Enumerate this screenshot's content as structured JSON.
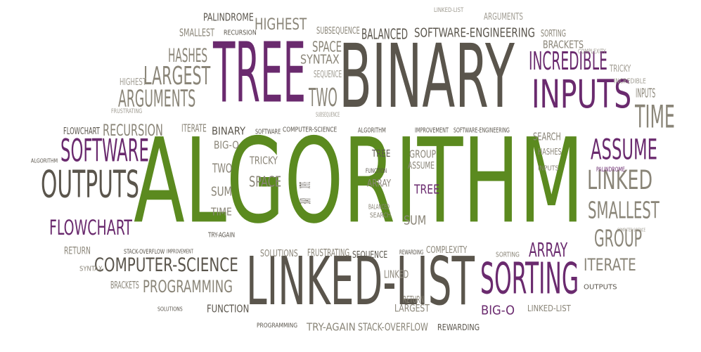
{
  "colors": {
    "green": "#5b8a1f",
    "purple": "#6a2a6e",
    "dark": "#5a554c",
    "mid": "#8a8578",
    "light": "#a09c92"
  },
  "words": [
    {
      "id": "algorithm-main",
      "text": "ALGORITHM",
      "color": "green"
    },
    {
      "id": "binary-big",
      "text": "BINARY",
      "color": "dark"
    },
    {
      "id": "tree-big",
      "text": "TREE",
      "color": "purple"
    },
    {
      "id": "linked-list-big",
      "text": "LINKED-LIST",
      "color": "dark"
    },
    {
      "id": "inputs-big",
      "text": "INPUTS",
      "color": "purple"
    },
    {
      "id": "outputs-big",
      "text": "OUTPUTS",
      "color": "dark"
    },
    {
      "id": "sorting-big",
      "text": "SORTING",
      "color": "purple"
    },
    {
      "id": "software-big",
      "text": "SOFTWARE",
      "color": "purple"
    },
    {
      "id": "incredible",
      "text": "INCREDIBLE",
      "color": "purple"
    },
    {
      "id": "assume-big",
      "text": "ASSUME",
      "color": "purple"
    },
    {
      "id": "linked",
      "text": "LINKED",
      "color": "mid"
    },
    {
      "id": "smallest-right",
      "text": "SMALLEST",
      "color": "mid"
    },
    {
      "id": "group-right",
      "text": "GROUP",
      "color": "mid"
    },
    {
      "id": "array-right",
      "text": "ARRAY",
      "color": "purple"
    },
    {
      "id": "iterate-right",
      "text": "ITERATE",
      "color": "mid"
    },
    {
      "id": "time-right",
      "text": "TIME",
      "color": "mid"
    },
    {
      "id": "largest-left",
      "text": "LARGEST",
      "color": "mid"
    },
    {
      "id": "arguments-left",
      "text": "ARGUMENTS",
      "color": "mid"
    },
    {
      "id": "hashes-left",
      "text": "HASHES",
      "color": "mid"
    },
    {
      "id": "flowchart-left",
      "text": "FLOWCHART",
      "color": "purple"
    },
    {
      "id": "computer-science",
      "text": "COMPUTER-SCIENCE",
      "color": "dark"
    },
    {
      "id": "programming",
      "text": "PROGRAMMING",
      "color": "mid"
    },
    {
      "id": "recursion",
      "text": "RECURSION",
      "color": "mid"
    },
    {
      "id": "highest-top",
      "text": "HIGHEST",
      "color": "mid"
    },
    {
      "id": "palindrome-top",
      "text": "PALINDROME",
      "color": "dark"
    },
    {
      "id": "software-engineering",
      "text": "SOFTWARE-ENGINEERING",
      "color": "dark"
    },
    {
      "id": "balanced",
      "text": "BALANCED",
      "color": "dark"
    },
    {
      "id": "two-mid",
      "text": "TWO",
      "color": "mid"
    },
    {
      "id": "syntax-top",
      "text": "SYNTAX",
      "color": "mid"
    },
    {
      "id": "space-top",
      "text": "SPACE",
      "color": "mid"
    },
    {
      "id": "subsequence",
      "text": "SUBSEQUENCE",
      "color": "mid"
    },
    {
      "id": "sequence-top",
      "text": "SEQUENCE",
      "color": "light"
    },
    {
      "id": "subsequence-small",
      "text": "SUBSEQUENCE",
      "color": "light"
    },
    {
      "id": "arguments-top",
      "text": "ARGUMENTS",
      "color": "light"
    },
    {
      "id": "linked-list-top",
      "text": "LINKED-LIST",
      "color": "light"
    },
    {
      "id": "sorting-top",
      "text": "SORTING",
      "color": "mid"
    },
    {
      "id": "brackets-top",
      "text": "BRACKETS",
      "color": "mid"
    },
    {
      "id": "complexity-top",
      "text": "COMPLEXITY",
      "color": "light"
    },
    {
      "id": "tricky-right",
      "text": "TRICKY",
      "color": "light"
    },
    {
      "id": "incredible-small",
      "text": "INCREDIBLE",
      "color": "light"
    },
    {
      "id": "inputs-small",
      "text": "INPUTS",
      "color": "mid"
    },
    {
      "id": "smallest-top",
      "text": "SMALLEST",
      "color": "mid"
    },
    {
      "id": "recursion-top",
      "text": "RECURSION",
      "color": "dark"
    },
    {
      "id": "highest-left",
      "text": "HIGHEST",
      "color": "light"
    },
    {
      "id": "frustrating-left",
      "text": "FRUSTRATING",
      "color": "light"
    },
    {
      "id": "flowchart-small",
      "text": "FLOWCHART",
      "color": "dark"
    },
    {
      "id": "iterate-mid",
      "text": "ITERATE",
      "color": "mid"
    },
    {
      "id": "binary-mid",
      "text": "BINARY",
      "color": "dark"
    },
    {
      "id": "big-o-mid",
      "text": "BIG-O",
      "color": "mid"
    },
    {
      "id": "software-small",
      "text": "SOFTWARE",
      "color": "dark"
    },
    {
      "id": "computer-science-small",
      "text": "COMPUTER-SCIENCE",
      "color": "dark"
    },
    {
      "id": "algorithm-small",
      "text": "ALGORITHM",
      "color": "dark"
    },
    {
      "id": "improvement",
      "text": "IMPROVEMENT",
      "color": "dark"
    },
    {
      "id": "software-engineering-small",
      "text": "SOFTWARE-ENGINEERING",
      "color": "dark"
    },
    {
      "id": "search-right",
      "text": "SEARCH",
      "color": "mid"
    },
    {
      "id": "hashes-right",
      "text": "HASHES",
      "color": "mid"
    },
    {
      "id": "inputs-right-small",
      "text": "INPUTS",
      "color": "mid"
    },
    {
      "id": "palindrome-right",
      "text": "PALINDROME",
      "color": "purple"
    },
    {
      "id": "computer-science-right",
      "text": "COMPUTER-SCIENCE",
      "color": "light"
    },
    {
      "id": "tricky-mid",
      "text": "TRICKY",
      "color": "mid"
    },
    {
      "id": "space-mid",
      "text": "SPACE",
      "color": "mid"
    },
    {
      "id": "two-lower",
      "text": "TWO",
      "color": "mid"
    },
    {
      "id": "sum-lower",
      "text": "SUM",
      "color": "mid"
    },
    {
      "id": "time-lower",
      "text": "TIME",
      "color": "mid"
    },
    {
      "id": "outputs-small",
      "text": "OUTPUTS",
      "color": "dark"
    },
    {
      "id": "binary-small",
      "text": "BINARY",
      "color": "dark"
    },
    {
      "id": "tree-mid",
      "text": "TREE",
      "color": "dark"
    },
    {
      "id": "group-mid",
      "text": "GROUP",
      "color": "mid"
    },
    {
      "id": "assume-mid",
      "text": "ASSUME",
      "color": "mid"
    },
    {
      "id": "function-mid",
      "text": "FUNCTION",
      "color": "dark"
    },
    {
      "id": "array-mid",
      "text": "ARRAY",
      "color": "mid"
    },
    {
      "id": "tree-purple",
      "text": "TREE",
      "color": "purple"
    },
    {
      "id": "sum-mid",
      "text": "SUM",
      "color": "mid"
    },
    {
      "id": "balanced-small",
      "text": "BALANCED",
      "color": "mid"
    },
    {
      "id": "search-small",
      "text": "SEARCH",
      "color": "mid"
    },
    {
      "id": "algorithm-tiny",
      "text": "ALGORITHM",
      "color": "dark"
    },
    {
      "id": "try-again-mid",
      "text": "TRY-AGAIN",
      "color": "dark"
    },
    {
      "id": "solutions",
      "text": "SOLUTIONS",
      "color": "mid"
    },
    {
      "id": "frustrating-mid",
      "text": "FRUSTRATING",
      "color": "mid"
    },
    {
      "id": "sequence-mid",
      "text": "SEQUENCE",
      "color": "dark"
    },
    {
      "id": "rewarding-small",
      "text": "REWARDING",
      "color": "dark"
    },
    {
      "id": "complexity-mid",
      "text": "COMPLEXITY",
      "color": "mid"
    },
    {
      "id": "sorting-small",
      "text": "SORTING",
      "color": "mid"
    },
    {
      "id": "return-left",
      "text": "RETURN",
      "color": "mid"
    },
    {
      "id": "syntax-left",
      "text": "SYNTAX",
      "color": "mid"
    },
    {
      "id": "stack-overflow-small",
      "text": "STACK-OVERFLOW",
      "color": "dark"
    },
    {
      "id": "improvement-small",
      "text": "IMPROVEMENT",
      "color": "dark"
    },
    {
      "id": "brackets-left",
      "text": "BRACKETS",
      "color": "mid"
    },
    {
      "id": "solutions-small",
      "text": "SOLUTIONS",
      "color": "dark"
    },
    {
      "id": "function-lower",
      "text": "FUNCTION",
      "color": "dark"
    },
    {
      "id": "linked-small",
      "text": "LINKED",
      "color": "mid"
    },
    {
      "id": "return-small",
      "text": "RETURN",
      "color": "mid"
    },
    {
      "id": "largest-small",
      "text": "LARGEST",
      "color": "mid"
    },
    {
      "id": "programming-small",
      "text": "PROGRAMMING",
      "color": "dark"
    },
    {
      "id": "try-again-lower",
      "text": "TRY-AGAIN",
      "color": "mid"
    },
    {
      "id": "stack-overflow",
      "text": "STACK-OVERFLOW",
      "color": "mid"
    },
    {
      "id": "rewarding",
      "text": "REWARDING",
      "color": "dark"
    },
    {
      "id": "big-o-lower",
      "text": "BIG-O",
      "color": "purple"
    },
    {
      "id": "linked-list-small",
      "text": "LINKED-LIST",
      "color": "mid"
    },
    {
      "id": "outputs-lower",
      "text": "OUTPUTS",
      "color": "dark"
    }
  ]
}
